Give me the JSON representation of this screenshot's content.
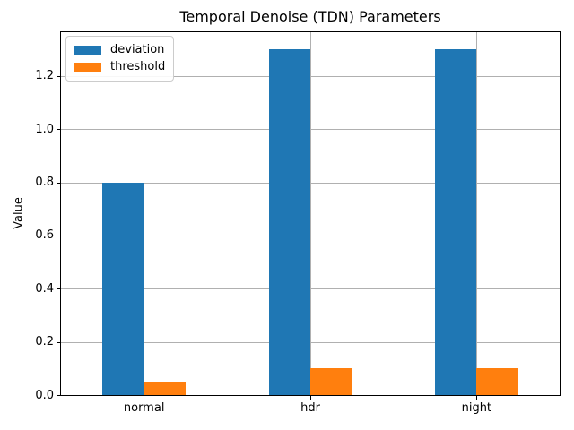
{
  "chart_data": {
    "type": "bar",
    "title": "Temporal Denoise (TDN) Parameters",
    "xlabel": "",
    "ylabel": "Value",
    "categories": [
      "normal",
      "hdr",
      "night"
    ],
    "series": [
      {
        "name": "deviation",
        "color": "#1f77b4",
        "values": [
          0.8,
          1.3,
          1.3
        ]
      },
      {
        "name": "threshold",
        "color": "#ff7f0e",
        "values": [
          0.05,
          0.1,
          0.1
        ]
      }
    ],
    "ylim": [
      0,
      1.365
    ],
    "yticks": [
      0.0,
      0.2,
      0.4,
      0.6,
      0.8,
      1.0,
      1.2
    ],
    "grid": true,
    "legend_position": "upper left",
    "bar_group_width_fraction": 0.5,
    "colors": {
      "grid": "#b0b0b0",
      "spine": "#000000",
      "background": "#ffffff",
      "text": "#000000"
    }
  }
}
